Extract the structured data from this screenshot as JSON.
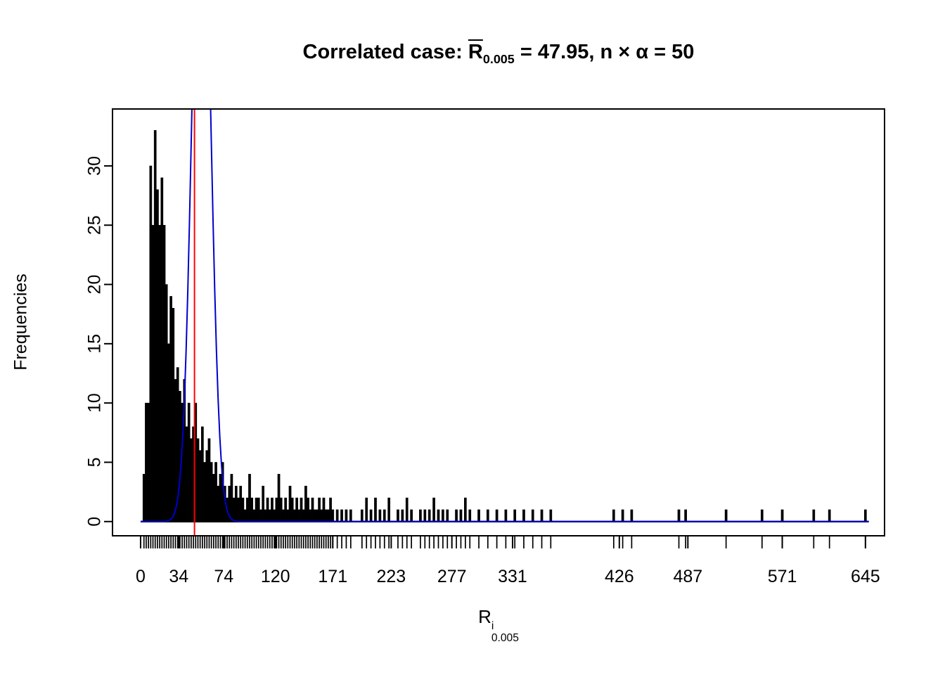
{
  "title": {
    "prefix": "Correlated case: ",
    "r_bar": "R",
    "r_sub": "0.005",
    "suffix": " = 47.95,  n × α = 50"
  },
  "chart_data": {
    "type": "histogram",
    "title_text": "Correlated case: mean R_0.005 = 47.95, n x alpha = 50",
    "ylabel": "Frequencies",
    "xlabel": {
      "base": "R",
      "sup": "i",
      "sub": "0.005"
    },
    "x_ticks": [
      0,
      34,
      74,
      120,
      171,
      223,
      277,
      331,
      426,
      487,
      571,
      645
    ],
    "y_ticks": [
      0,
      5,
      10,
      15,
      20,
      25,
      30
    ],
    "xlim": [
      -25,
      662
    ],
    "ylim": [
      -1.2,
      34.8
    ],
    "bin_width": 2,
    "bar_color": "#000000",
    "grid": false,
    "legend": false,
    "bars": [
      [
        2,
        4
      ],
      [
        4,
        10
      ],
      [
        6,
        10
      ],
      [
        8,
        30
      ],
      [
        10,
        25
      ],
      [
        12,
        33
      ],
      [
        14,
        28
      ],
      [
        16,
        25
      ],
      [
        18,
        29
      ],
      [
        20,
        25
      ],
      [
        22,
        20
      ],
      [
        24,
        15
      ],
      [
        26,
        19
      ],
      [
        28,
        18
      ],
      [
        30,
        12
      ],
      [
        32,
        13
      ],
      [
        34,
        11
      ],
      [
        36,
        10
      ],
      [
        38,
        12
      ],
      [
        40,
        8
      ],
      [
        42,
        10
      ],
      [
        44,
        7
      ],
      [
        46,
        8
      ],
      [
        48,
        10
      ],
      [
        50,
        7
      ],
      [
        52,
        6
      ],
      [
        54,
        8
      ],
      [
        56,
        5
      ],
      [
        58,
        6
      ],
      [
        60,
        7
      ],
      [
        62,
        5
      ],
      [
        64,
        4
      ],
      [
        66,
        5
      ],
      [
        68,
        3
      ],
      [
        70,
        4
      ],
      [
        72,
        5
      ],
      [
        74,
        3
      ],
      [
        76,
        2
      ],
      [
        78,
        3
      ],
      [
        80,
        4
      ],
      [
        82,
        2
      ],
      [
        84,
        3
      ],
      [
        86,
        2
      ],
      [
        88,
        3
      ],
      [
        90,
        2
      ],
      [
        92,
        1
      ],
      [
        94,
        2
      ],
      [
        96,
        4
      ],
      [
        98,
        2
      ],
      [
        100,
        1
      ],
      [
        102,
        2
      ],
      [
        104,
        2
      ],
      [
        106,
        1
      ],
      [
        108,
        3
      ],
      [
        110,
        1
      ],
      [
        112,
        2
      ],
      [
        114,
        1
      ],
      [
        116,
        2
      ],
      [
        118,
        1
      ],
      [
        120,
        2
      ],
      [
        122,
        4
      ],
      [
        124,
        2
      ],
      [
        126,
        1
      ],
      [
        128,
        2
      ],
      [
        130,
        1
      ],
      [
        132,
        3
      ],
      [
        134,
        2
      ],
      [
        136,
        1
      ],
      [
        138,
        2
      ],
      [
        140,
        1
      ],
      [
        142,
        2
      ],
      [
        144,
        1
      ],
      [
        146,
        3
      ],
      [
        148,
        2
      ],
      [
        150,
        1
      ],
      [
        152,
        2
      ],
      [
        154,
        1
      ],
      [
        156,
        1
      ],
      [
        158,
        2
      ],
      [
        160,
        1
      ],
      [
        162,
        2
      ],
      [
        164,
        1
      ],
      [
        166,
        1
      ],
      [
        168,
        2
      ],
      [
        170,
        1
      ],
      [
        174,
        1
      ],
      [
        178,
        1
      ],
      [
        182,
        1
      ],
      [
        186,
        1
      ],
      [
        196,
        1
      ],
      [
        200,
        2
      ],
      [
        204,
        1
      ],
      [
        208,
        2
      ],
      [
        212,
        1
      ],
      [
        216,
        1
      ],
      [
        220,
        2
      ],
      [
        228,
        1
      ],
      [
        232,
        1
      ],
      [
        236,
        2
      ],
      [
        240,
        1
      ],
      [
        248,
        1
      ],
      [
        252,
        1
      ],
      [
        256,
        1
      ],
      [
        260,
        2
      ],
      [
        264,
        1
      ],
      [
        268,
        1
      ],
      [
        272,
        1
      ],
      [
        280,
        1
      ],
      [
        284,
        1
      ],
      [
        288,
        2
      ],
      [
        292,
        1
      ],
      [
        300,
        1
      ],
      [
        308,
        1
      ],
      [
        316,
        1
      ],
      [
        324,
        1
      ],
      [
        332,
        1
      ],
      [
        340,
        1
      ],
      [
        348,
        1
      ],
      [
        356,
        1
      ],
      [
        364,
        1
      ],
      [
        420,
        1
      ],
      [
        428,
        1
      ],
      [
        436,
        1
      ],
      [
        478,
        1
      ],
      [
        484,
        1
      ],
      [
        520,
        1
      ],
      [
        552,
        1
      ],
      [
        570,
        1
      ],
      [
        598,
        1
      ],
      [
        612,
        1
      ],
      [
        644,
        1
      ]
    ],
    "mean_line": {
      "x": 47.95,
      "color": "#ff0000"
    },
    "density_curve": {
      "shape": "normal",
      "mean": 54,
      "sd": 8,
      "peak": 60,
      "color": "#0000cc"
    }
  }
}
